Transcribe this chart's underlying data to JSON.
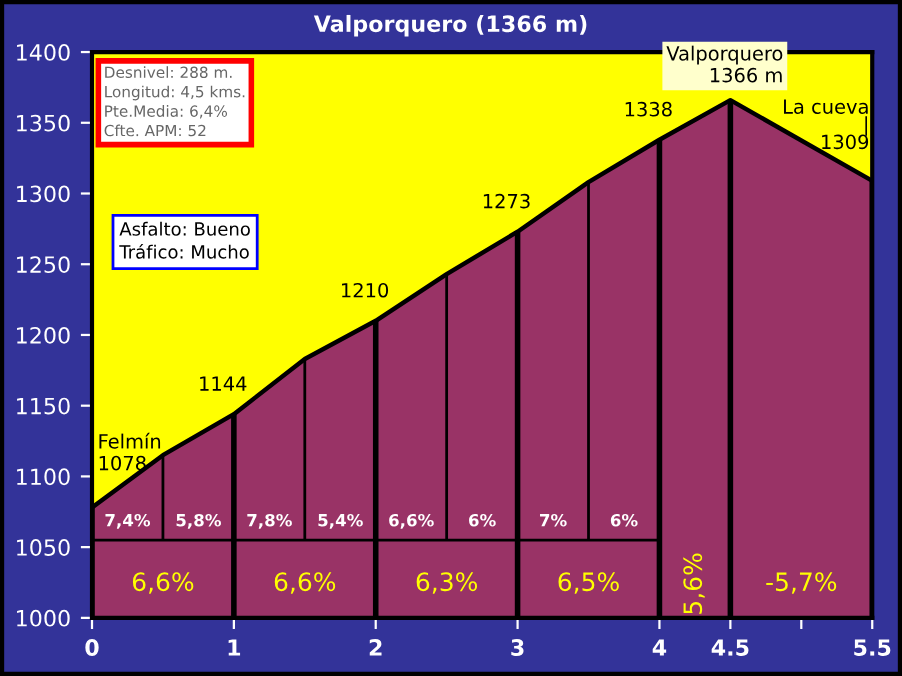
{
  "chart_data": {
    "type": "area",
    "title": "Valporquero (1366 m)",
    "x": [
      0,
      0.5,
      1,
      1.5,
      2,
      2.5,
      3,
      3.5,
      4,
      4.5,
      5.5
    ],
    "series": [
      {
        "color": "#993366",
        "values": [
          1078,
          1115,
          1144,
          1183,
          1210,
          1243,
          1273,
          1308,
          1338,
          1366,
          1309
        ]
      }
    ],
    "xlim": [
      0,
      5.5
    ],
    "xticks": [
      0,
      1,
      2,
      3,
      4,
      4.5,
      {
        "value": 5,
        "label": null
      },
      5.5
    ],
    "ylim": [
      1000,
      1400
    ],
    "yticks": [
      1000,
      1050,
      1100,
      1150,
      1200,
      1250,
      1300,
      1350,
      1400
    ],
    "annotations": [
      "Desnivel: 288 m.\nLongitud: 4,5 kms.\nPte.Media: 6,4%\nCfte. APM: 52",
      "Asfalto: Bueno\nTráfico: Mucho",
      {
        "text": "Felmín\n1078",
        "x": 0,
        "y": 1078
      },
      {
        "text": "1144",
        "x": 1,
        "y": 1144
      },
      {
        "text": "1210",
        "x": 2,
        "y": 1210
      },
      {
        "text": "1273",
        "x": 3,
        "y": 1273
      },
      {
        "text": "1338",
        "x": 4,
        "y": 1338
      },
      {
        "text": "Valporquero\n1366 m",
        "x": 4.5,
        "y": 1366
      },
      {
        "text": "La cueva\n|\n1309",
        "x": 5.5,
        "y": 1309
      },
      {
        "text": "7,4%",
        "x": 0.5,
        "y": 1115
      },
      "5,8%",
      {
        "text": "7,8%",
        "x": 1.5,
        "y": 1183
      },
      "5,4%",
      {
        "text": "6,6%",
        "x": 2.5,
        "y": 1243
      },
      "6%",
      "7%",
      "6%",
      "6,6%",
      "6,6%",
      "6,3%",
      "6,5%",
      "5,6%",
      "-5,7%"
    ]
  }
}
